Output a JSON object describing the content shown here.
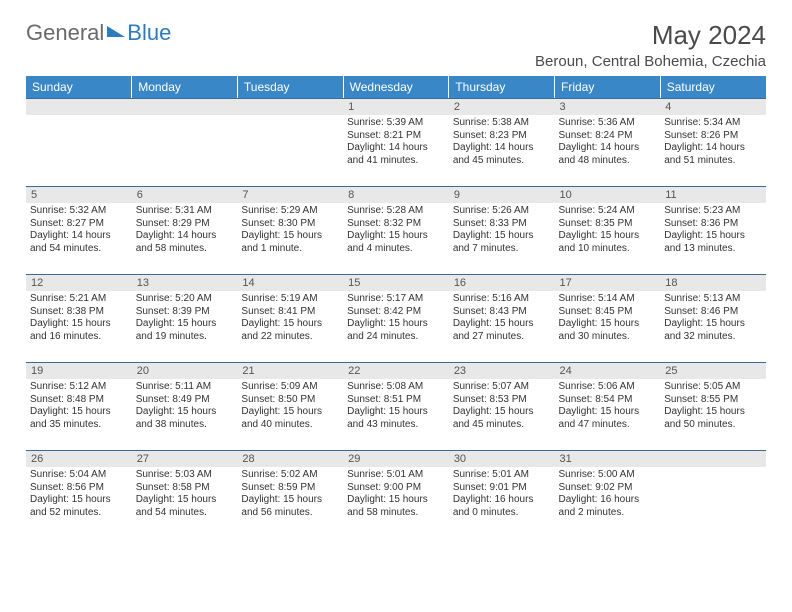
{
  "brand": {
    "part1": "General",
    "part2": "Blue"
  },
  "title": "May 2024",
  "location": "Beroun, Central Bohemia, Czechia",
  "colors": {
    "header_bg": "#3a87c7",
    "header_text": "#ffffff",
    "daynum_bg": "#e8e8e8",
    "daynum_text": "#555555",
    "body_text": "#333333",
    "rule": "#3a6a9a"
  },
  "dayHeaders": [
    "Sunday",
    "Monday",
    "Tuesday",
    "Wednesday",
    "Thursday",
    "Friday",
    "Saturday"
  ],
  "weeks": [
    [
      {
        "n": "",
        "sr": "",
        "ss": "",
        "dl": ""
      },
      {
        "n": "",
        "sr": "",
        "ss": "",
        "dl": ""
      },
      {
        "n": "",
        "sr": "",
        "ss": "",
        "dl": ""
      },
      {
        "n": "1",
        "sr": "5:39 AM",
        "ss": "8:21 PM",
        "dl": "14 hours and 41 minutes."
      },
      {
        "n": "2",
        "sr": "5:38 AM",
        "ss": "8:23 PM",
        "dl": "14 hours and 45 minutes."
      },
      {
        "n": "3",
        "sr": "5:36 AM",
        "ss": "8:24 PM",
        "dl": "14 hours and 48 minutes."
      },
      {
        "n": "4",
        "sr": "5:34 AM",
        "ss": "8:26 PM",
        "dl": "14 hours and 51 minutes."
      }
    ],
    [
      {
        "n": "5",
        "sr": "5:32 AM",
        "ss": "8:27 PM",
        "dl": "14 hours and 54 minutes."
      },
      {
        "n": "6",
        "sr": "5:31 AM",
        "ss": "8:29 PM",
        "dl": "14 hours and 58 minutes."
      },
      {
        "n": "7",
        "sr": "5:29 AM",
        "ss": "8:30 PM",
        "dl": "15 hours and 1 minute."
      },
      {
        "n": "8",
        "sr": "5:28 AM",
        "ss": "8:32 PM",
        "dl": "15 hours and 4 minutes."
      },
      {
        "n": "9",
        "sr": "5:26 AM",
        "ss": "8:33 PM",
        "dl": "15 hours and 7 minutes."
      },
      {
        "n": "10",
        "sr": "5:24 AM",
        "ss": "8:35 PM",
        "dl": "15 hours and 10 minutes."
      },
      {
        "n": "11",
        "sr": "5:23 AM",
        "ss": "8:36 PM",
        "dl": "15 hours and 13 minutes."
      }
    ],
    [
      {
        "n": "12",
        "sr": "5:21 AM",
        "ss": "8:38 PM",
        "dl": "15 hours and 16 minutes."
      },
      {
        "n": "13",
        "sr": "5:20 AM",
        "ss": "8:39 PM",
        "dl": "15 hours and 19 minutes."
      },
      {
        "n": "14",
        "sr": "5:19 AM",
        "ss": "8:41 PM",
        "dl": "15 hours and 22 minutes."
      },
      {
        "n": "15",
        "sr": "5:17 AM",
        "ss": "8:42 PM",
        "dl": "15 hours and 24 minutes."
      },
      {
        "n": "16",
        "sr": "5:16 AM",
        "ss": "8:43 PM",
        "dl": "15 hours and 27 minutes."
      },
      {
        "n": "17",
        "sr": "5:14 AM",
        "ss": "8:45 PM",
        "dl": "15 hours and 30 minutes."
      },
      {
        "n": "18",
        "sr": "5:13 AM",
        "ss": "8:46 PM",
        "dl": "15 hours and 32 minutes."
      }
    ],
    [
      {
        "n": "19",
        "sr": "5:12 AM",
        "ss": "8:48 PM",
        "dl": "15 hours and 35 minutes."
      },
      {
        "n": "20",
        "sr": "5:11 AM",
        "ss": "8:49 PM",
        "dl": "15 hours and 38 minutes."
      },
      {
        "n": "21",
        "sr": "5:09 AM",
        "ss": "8:50 PM",
        "dl": "15 hours and 40 minutes."
      },
      {
        "n": "22",
        "sr": "5:08 AM",
        "ss": "8:51 PM",
        "dl": "15 hours and 43 minutes."
      },
      {
        "n": "23",
        "sr": "5:07 AM",
        "ss": "8:53 PM",
        "dl": "15 hours and 45 minutes."
      },
      {
        "n": "24",
        "sr": "5:06 AM",
        "ss": "8:54 PM",
        "dl": "15 hours and 47 minutes."
      },
      {
        "n": "25",
        "sr": "5:05 AM",
        "ss": "8:55 PM",
        "dl": "15 hours and 50 minutes."
      }
    ],
    [
      {
        "n": "26",
        "sr": "5:04 AM",
        "ss": "8:56 PM",
        "dl": "15 hours and 52 minutes."
      },
      {
        "n": "27",
        "sr": "5:03 AM",
        "ss": "8:58 PM",
        "dl": "15 hours and 54 minutes."
      },
      {
        "n": "28",
        "sr": "5:02 AM",
        "ss": "8:59 PM",
        "dl": "15 hours and 56 minutes."
      },
      {
        "n": "29",
        "sr": "5:01 AM",
        "ss": "9:00 PM",
        "dl": "15 hours and 58 minutes."
      },
      {
        "n": "30",
        "sr": "5:01 AM",
        "ss": "9:01 PM",
        "dl": "16 hours and 0 minutes."
      },
      {
        "n": "31",
        "sr": "5:00 AM",
        "ss": "9:02 PM",
        "dl": "16 hours and 2 minutes."
      },
      {
        "n": "",
        "sr": "",
        "ss": "",
        "dl": ""
      }
    ]
  ],
  "labels": {
    "sunrise": "Sunrise:",
    "sunset": "Sunset:",
    "daylight": "Daylight:"
  }
}
